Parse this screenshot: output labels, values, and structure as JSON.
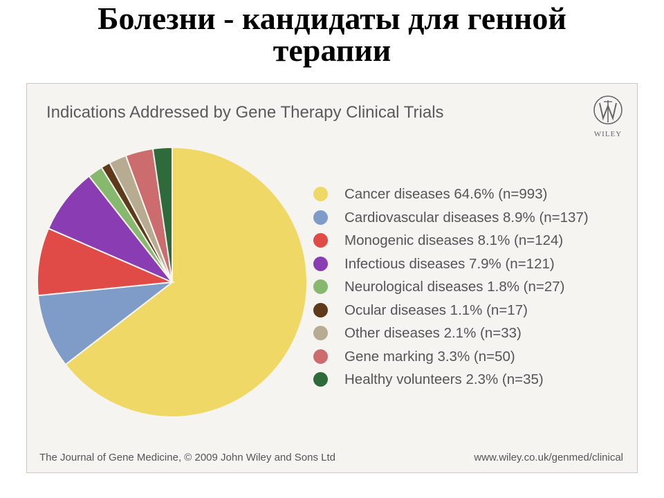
{
  "slide": {
    "title_line1": "Болезни - кандидаты для генной",
    "title_line2": "терапии"
  },
  "logo": {
    "text": "WILEY"
  },
  "footer": {
    "left": "The Journal of Gene Medicine, © 2009 John Wiley and Sons Ltd",
    "right": "www.wiley.co.uk/genmed/clinical"
  },
  "chart_data": {
    "type": "pie",
    "title": "Indications Addressed by Gene Therapy Clinical Trials",
    "legend_position": "right",
    "slices": [
      {
        "label": "Cancer diseases 64.6% (n=993)",
        "name": "Cancer diseases",
        "percent": 64.6,
        "n": 993,
        "color": "#f0d867"
      },
      {
        "label": "Cardiovascular diseases 8.9% (n=137)",
        "name": "Cardiovascular diseases",
        "percent": 8.9,
        "n": 137,
        "color": "#7f9cc9"
      },
      {
        "label": "Monogenic diseases 8.1% (n=124)",
        "name": "Monogenic diseases",
        "percent": 8.1,
        "n": 124,
        "color": "#e04a47"
      },
      {
        "label": "Infectious diseases 7.9% (n=121)",
        "name": "Infectious diseases",
        "percent": 7.9,
        "n": 121,
        "color": "#8a3cb3"
      },
      {
        "label": "Neurological diseases 1.8% (n=27)",
        "name": "Neurological diseases",
        "percent": 1.8,
        "n": 27,
        "color": "#86b86d"
      },
      {
        "label": "Ocular diseases 1.1% (n=17)",
        "name": "Ocular diseases",
        "percent": 1.1,
        "n": 17,
        "color": "#5e3a1a"
      },
      {
        "label": "Other diseases 2.1% (n=33)",
        "name": "Other diseases",
        "percent": 2.1,
        "n": 33,
        "color": "#b7ab92"
      },
      {
        "label": "Gene marking 3.3% (n=50)",
        "name": "Gene marking",
        "percent": 3.3,
        "n": 50,
        "color": "#cd6c6f"
      },
      {
        "label": "Healthy volunteers 2.3% (n=35)",
        "name": "Healthy volunteers",
        "percent": 2.3,
        "n": 35,
        "color": "#2f6b3a"
      }
    ]
  }
}
